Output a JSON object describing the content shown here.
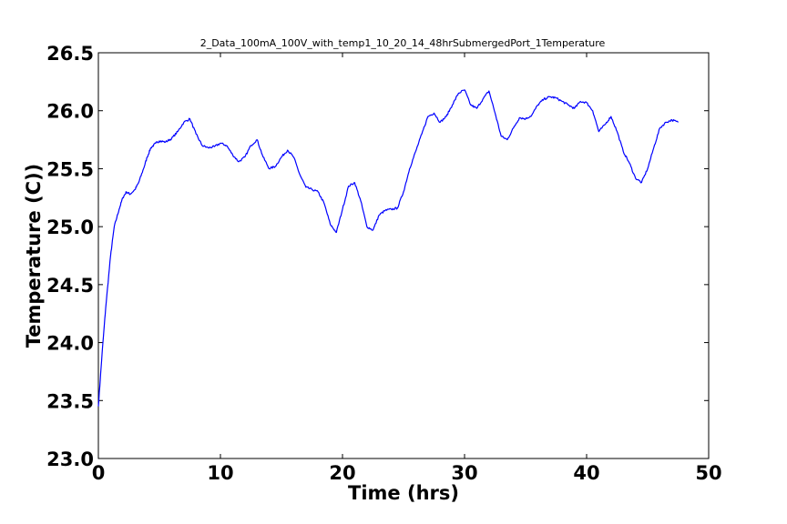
{
  "chart_data": {
    "type": "line",
    "title": "2_Data_100mA_100V_with_temp1_10_20_14_48hrSubmergedPort_1Temperature",
    "xlabel": "Time (hrs)",
    "ylabel": "Temperature (C))",
    "xlim": [
      0,
      50
    ],
    "ylim": [
      23.0,
      26.5
    ],
    "xticks": [
      0,
      10,
      20,
      30,
      40,
      50
    ],
    "xtick_labels": [
      "0",
      "10",
      "20",
      "30",
      "40",
      "50"
    ],
    "yticks": [
      23.0,
      23.5,
      24.0,
      24.5,
      25.0,
      25.5,
      26.0,
      26.5
    ],
    "ytick_labels": [
      "23.0",
      "23.5",
      "24.0",
      "24.5",
      "25.0",
      "25.5",
      "26.0",
      "26.5"
    ],
    "grid": false,
    "line_color": "#0000ff",
    "series": [
      {
        "x": [
          0.0,
          0.3,
          0.6,
          1.0,
          1.3,
          1.7,
          2.0,
          2.3,
          2.6,
          3.0,
          3.3,
          3.7,
          4.0,
          4.3,
          4.7,
          5.0,
          5.5,
          6.0,
          6.5,
          7.0,
          7.5,
          8.0,
          8.5,
          9.0,
          9.5,
          10.0,
          10.5,
          11.0,
          11.5,
          12.0,
          12.5,
          13.0,
          13.5,
          14.0,
          14.5,
          15.0,
          15.5,
          16.0,
          16.5,
          17.0,
          17.5,
          18.0,
          18.5,
          19.0,
          19.5,
          20.0,
          20.5,
          21.0,
          21.5,
          22.0,
          22.5,
          23.0,
          23.5,
          24.0,
          24.5,
          25.0,
          25.5,
          26.0,
          26.5,
          27.0,
          27.5,
          28.0,
          28.5,
          29.0,
          29.5,
          30.0,
          30.5,
          31.0,
          31.5,
          32.0,
          32.5,
          33.0,
          33.5,
          34.0,
          34.5,
          35.0,
          35.5,
          36.0,
          36.5,
          37.0,
          37.5,
          38.0,
          38.5,
          39.0,
          39.5,
          40.0,
          40.5,
          41.0,
          41.5,
          42.0,
          42.5,
          43.0,
          43.5,
          44.0,
          44.5,
          45.0,
          45.5,
          46.0,
          46.5,
          47.0,
          47.5
        ],
        "y": [
          23.45,
          23.9,
          24.3,
          24.75,
          25.0,
          25.15,
          25.25,
          25.3,
          25.28,
          25.32,
          25.38,
          25.5,
          25.6,
          25.68,
          25.72,
          25.74,
          25.73,
          25.76,
          25.82,
          25.9,
          25.93,
          25.8,
          25.7,
          25.68,
          25.69,
          25.72,
          25.7,
          25.62,
          25.56,
          25.6,
          25.7,
          25.75,
          25.6,
          25.5,
          25.52,
          25.6,
          25.66,
          25.6,
          25.45,
          25.34,
          25.32,
          25.3,
          25.2,
          25.02,
          24.95,
          25.15,
          25.35,
          25.38,
          25.22,
          25.0,
          24.97,
          25.1,
          25.14,
          25.15,
          25.16,
          25.3,
          25.5,
          25.65,
          25.8,
          25.95,
          25.98,
          25.9,
          25.95,
          26.05,
          26.15,
          26.18,
          26.05,
          26.02,
          26.1,
          26.17,
          25.98,
          25.78,
          25.75,
          25.85,
          25.94,
          25.93,
          25.96,
          26.05,
          26.1,
          26.12,
          26.11,
          26.08,
          26.05,
          26.02,
          26.08,
          26.07,
          26.0,
          25.82,
          25.88,
          25.95,
          25.82,
          25.65,
          25.55,
          25.42,
          25.38,
          25.5,
          25.68,
          25.85,
          25.9,
          25.92,
          25.9
        ]
      }
    ]
  }
}
